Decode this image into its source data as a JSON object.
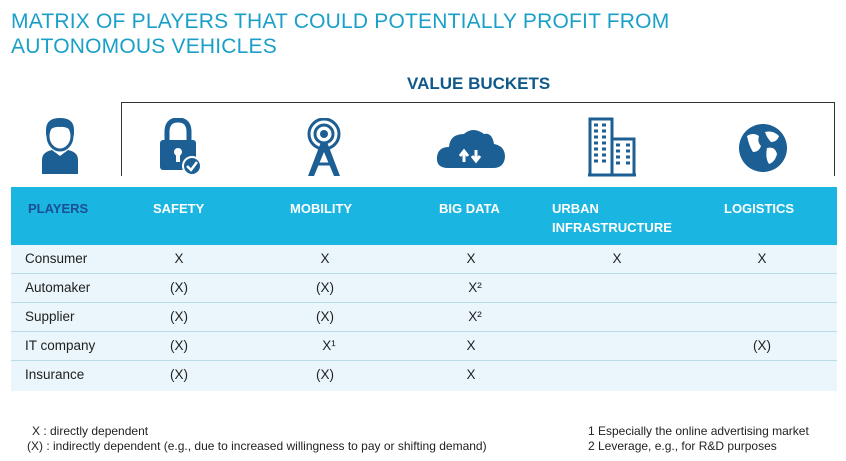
{
  "title": "MATRIX OF PLAYERS THAT COULD POTENTIALLY PROFIT FROM AUTONOMOUS VEHICLES",
  "value_buckets_label": "VALUE BUCKETS",
  "icons": [
    "person-icon",
    "lock-check-icon",
    "signal-tower-icon",
    "cloud-transfer-icon",
    "buildings-icon",
    "globe-icon"
  ],
  "columns": {
    "players": "PLAYERS",
    "safety": "SAFETY",
    "mobility": "MOBILITY",
    "big_data": "BIG DATA",
    "urban_line1": "URBAN",
    "urban_line2": "INFRASTRUCTURE",
    "logistics": "LOGISTICS"
  },
  "rows": [
    {
      "player": "Consumer",
      "safety": "X",
      "mobility": "X",
      "big_data": "X",
      "urban": "X",
      "logistics": "X"
    },
    {
      "player": "Automaker",
      "safety": "(X)",
      "mobility": "(X)",
      "big_data": "X²",
      "urban": "",
      "logistics": ""
    },
    {
      "player": "Supplier",
      "safety": "(X)",
      "mobility": "(X)",
      "big_data": "X²",
      "urban": "",
      "logistics": ""
    },
    {
      "player": "IT company",
      "safety": "(X)",
      "mobility": "X¹",
      "big_data": "X",
      "urban": "",
      "logistics": "(X)"
    },
    {
      "player": "Insurance",
      "safety": "(X)",
      "mobility": "(X)",
      "big_data": "X",
      "urban": "",
      "logistics": ""
    }
  ],
  "legend": {
    "direct": "X  : directly dependent",
    "indirect": "(X) : indirectly dependent (e.g., due to increased willingness to pay or shifting demand)",
    "note1": "1 Especially the online advertising market",
    "note2": "2 Leverage, e.g., for R&D purposes"
  },
  "colors": {
    "title": "#1aa0c8",
    "header_bg": "#1ab5e0",
    "players_header": "#1b4f93",
    "row_bg": "#eaf6fb",
    "icon": "#1c5f94"
  }
}
